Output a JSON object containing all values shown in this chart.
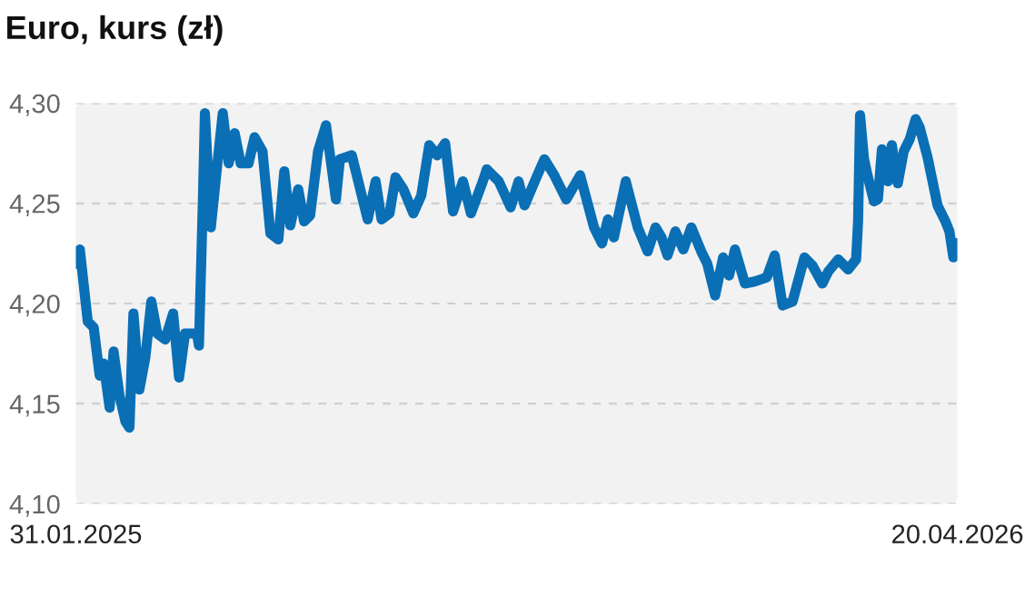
{
  "chart_data": {
    "type": "line",
    "title": "Euro, kurs (zł)",
    "x": [
      "2025-01-31",
      "2025-02-02",
      "2025-02-06",
      "2025-02-09",
      "2025-02-12",
      "2025-02-14",
      "2025-02-17",
      "2025-02-19",
      "2025-02-22",
      "2025-02-25",
      "2025-02-27",
      "2025-03-01",
      "2025-03-04",
      "2025-03-07",
      "2025-03-10",
      "2025-03-13",
      "2025-03-17",
      "2025-03-21",
      "2025-03-24",
      "2025-03-27",
      "2025-04-02",
      "2025-04-03",
      "2025-04-05",
      "2025-04-06",
      "2025-04-09",
      "2025-04-12",
      "2025-04-15",
      "2025-04-18",
      "2025-04-21",
      "2025-04-24",
      "2025-04-28",
      "2025-05-01",
      "2025-05-05",
      "2025-05-09",
      "2025-05-13",
      "2025-05-16",
      "2025-05-19",
      "2025-05-23",
      "2025-05-26",
      "2025-05-29",
      "2025-06-02",
      "2025-06-06",
      "2025-06-11",
      "2025-06-13",
      "2025-06-19",
      "2025-06-27",
      "2025-07-01",
      "2025-07-04",
      "2025-07-08",
      "2025-07-11",
      "2025-07-15",
      "2025-07-20",
      "2025-07-24",
      "2025-07-28",
      "2025-08-01",
      "2025-08-05",
      "2025-08-09",
      "2025-08-14",
      "2025-08-18",
      "2025-08-24",
      "2025-08-26",
      "2025-09-01",
      "2025-09-07",
      "2025-09-11",
      "2025-09-14",
      "2025-09-20",
      "2025-09-24",
      "2025-09-29",
      "2025-10-05",
      "2025-10-12",
      "2025-10-19",
      "2025-10-23",
      "2025-10-26",
      "2025-10-29",
      "2025-11-04",
      "2025-11-10",
      "2025-11-15",
      "2025-11-19",
      "2025-11-22",
      "2025-11-25",
      "2025-11-29",
      "2025-12-03",
      "2025-12-07",
      "2025-12-12",
      "2025-12-15",
      "2025-12-19",
      "2025-12-23",
      "2025-12-26",
      "2025-12-29",
      "2026-01-03",
      "2026-01-08",
      "2026-01-14",
      "2026-01-18",
      "2026-01-22",
      "2026-01-27",
      "2026-02-02",
      "2026-02-06",
      "2026-02-11",
      "2026-02-14",
      "2026-02-19",
      "2026-02-24",
      "2026-02-28",
      "2026-03-01",
      "2026-03-02",
      "2026-03-04",
      "2026-03-06",
      "2026-03-09",
      "2026-03-11",
      "2026-03-13",
      "2026-03-16",
      "2026-03-18",
      "2026-03-21",
      "2026-03-24",
      "2026-03-27",
      "2026-03-30",
      "2026-04-01",
      "2026-04-05",
      "2026-04-10",
      "2026-04-14",
      "2026-04-16",
      "2026-04-18",
      "2026-04-20"
    ],
    "series": [
      {
        "color": "#0a6fb5",
        "values": [
          4.22,
          4.227,
          4.191,
          4.188,
          4.164,
          4.17,
          4.148,
          4.176,
          4.154,
          4.141,
          4.138,
          4.195,
          4.157,
          4.173,
          4.201,
          4.185,
          4.182,
          4.195,
          4.163,
          4.185,
          4.185,
          4.179,
          4.252,
          4.295,
          4.238,
          4.267,
          4.295,
          4.27,
          4.285,
          4.27,
          4.27,
          4.283,
          4.276,
          4.235,
          4.232,
          4.266,
          4.239,
          4.257,
          4.241,
          4.244,
          4.276,
          4.289,
          4.252,
          4.272,
          4.274,
          4.242,
          4.261,
          4.242,
          4.245,
          4.263,
          4.257,
          4.245,
          4.254,
          4.279,
          4.274,
          4.28,
          4.246,
          4.261,
          4.245,
          4.261,
          4.267,
          4.261,
          4.248,
          4.261,
          4.249,
          4.263,
          4.272,
          4.264,
          4.252,
          4.264,
          4.238,
          4.23,
          4.242,
          4.233,
          4.261,
          4.238,
          4.226,
          4.238,
          4.233,
          4.224,
          4.236,
          4.227,
          4.238,
          4.226,
          4.22,
          4.204,
          4.223,
          4.214,
          4.227,
          4.21,
          4.211,
          4.213,
          4.224,
          4.199,
          4.201,
          4.223,
          4.219,
          4.21,
          4.216,
          4.222,
          4.217,
          4.222,
          4.241,
          4.294,
          4.272,
          4.263,
          4.251,
          4.252,
          4.277,
          4.261,
          4.279,
          4.26,
          4.276,
          4.282,
          4.292,
          4.288,
          4.273,
          4.249,
          4.241,
          4.236,
          4.223,
          4.23
        ]
      }
    ],
    "xlim": [
      "2025-01-31",
      "2026-04-20"
    ],
    "xticks": [
      {
        "value": "2025-01-31",
        "label": "31.01.2025"
      },
      {
        "value": "2026-04-20",
        "label": "20.04.2026"
      }
    ],
    "ylim": [
      4.1,
      4.3
    ],
    "yticks": [
      {
        "value": 4.1,
        "label": "4,10"
      },
      {
        "value": 4.15,
        "label": "4,15"
      },
      {
        "value": 4.2,
        "label": "4,20"
      },
      {
        "value": 4.25,
        "label": "4,25"
      },
      {
        "value": 4.3,
        "label": "4,30"
      }
    ],
    "grid": "y",
    "line_style": "solid",
    "marker": "none"
  }
}
